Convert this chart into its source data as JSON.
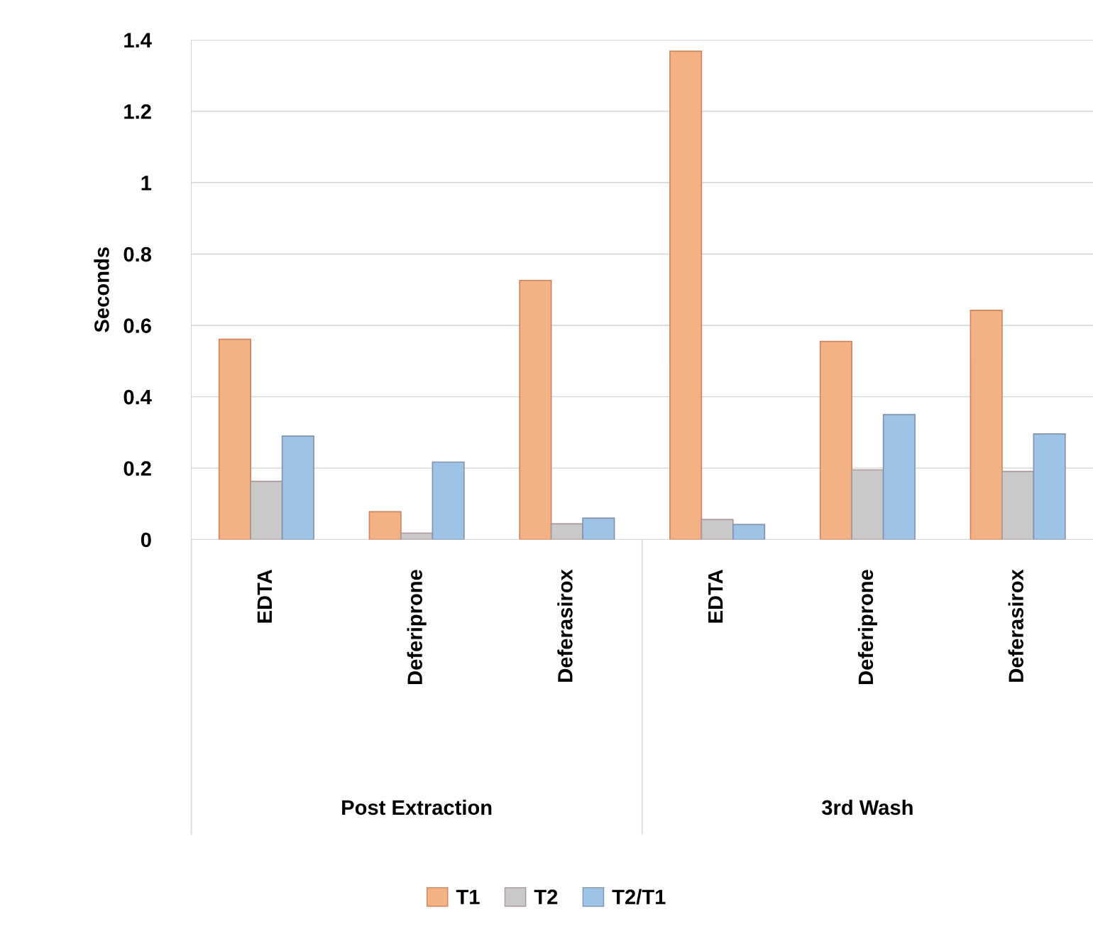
{
  "chart_data": {
    "type": "bar",
    "ylabel": "Seconds",
    "categories": [
      "EDTA",
      "Deferiprone",
      "Deferasirox",
      "EDTA",
      "Deferiprone",
      "Deferasirox"
    ],
    "series": [
      {
        "name": "T1",
        "color": "#f4b183",
        "values": [
          0.561,
          0.078,
          0.726,
          1.368,
          0.555,
          0.642
        ]
      },
      {
        "name": "T2",
        "color": "#c9c9c9",
        "values": [
          0.163,
          0.018,
          0.044,
          0.056,
          0.195,
          0.191
        ]
      },
      {
        "name": "T2/T1",
        "color": "#9dc3e6",
        "values": [
          0.29,
          0.217,
          0.06,
          0.042,
          0.35,
          0.296
        ]
      }
    ],
    "annotations": [
      "Post Extraction",
      "3rd Wash"
    ],
    "ylim": [
      0,
      1.4
    ],
    "yticks": [
      0,
      0.2,
      0.4,
      0.6,
      0.8,
      1,
      1.2,
      1.4
    ],
    "grid": "y",
    "legend": "bottom"
  }
}
